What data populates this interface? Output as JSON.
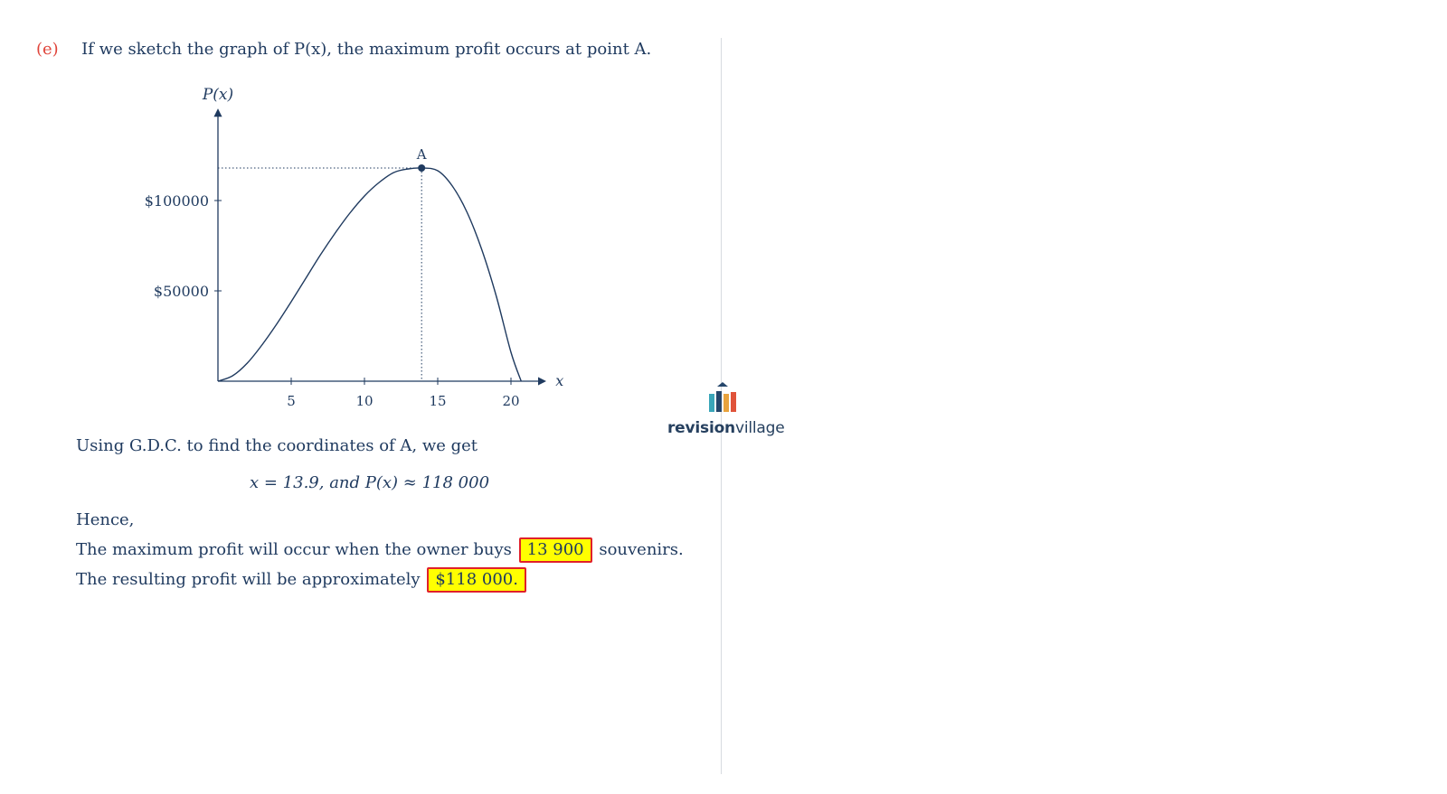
{
  "part": {
    "label": "(e)",
    "text": "If we sketch the graph of P(x), the maximum profit occurs at point A."
  },
  "chart_data": {
    "type": "line",
    "title": "",
    "ylabel": "P(x)",
    "xlabel": "x",
    "x_ticks": [
      5,
      10,
      15,
      20
    ],
    "x_tick_labels": [
      "5",
      "10",
      "15",
      "20"
    ],
    "y_ticks": [
      50000,
      100000
    ],
    "y_tick_labels": [
      "$50000",
      "$100000"
    ],
    "xlim": [
      0,
      22
    ],
    "ylim": [
      0,
      145000
    ],
    "series": [
      {
        "x": [
          0,
          1,
          2,
          3,
          4,
          5,
          6,
          7,
          8,
          9,
          10,
          11,
          12,
          13,
          13.9,
          15,
          16,
          17,
          18,
          19,
          20,
          20.7
        ],
        "y": [
          0,
          3000,
          10000,
          20000,
          31500,
          44000,
          57000,
          70000,
          82000,
          93000,
          102500,
          110000,
          115500,
          117500,
          118000,
          116500,
          108000,
          93500,
          73000,
          47000,
          16000,
          0
        ]
      }
    ],
    "annotations": [
      {
        "label": "A",
        "x": 13.9,
        "y": 118000
      }
    ],
    "grid": false,
    "legend": "none"
  },
  "gdc_text": "Using G.D.C. to find the coordinates of A, we get",
  "result_eq": "x = 13.9,  and P(x) ≈ 118 000",
  "hence": "Hence,",
  "line1": {
    "before": "The maximum profit will occur when the owner buys",
    "answer": "13 900",
    "after": "souvenirs."
  },
  "line2": {
    "before": "The resulting profit will be approximately",
    "answer": "$118 000."
  },
  "logo": {
    "bold": "revision",
    "regular": "village",
    "colors": [
      "#3aa6b9",
      "#25466b",
      "#e8a33d",
      "#e0533a"
    ]
  }
}
